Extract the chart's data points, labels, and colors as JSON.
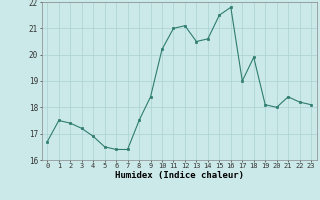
{
  "x": [
    0,
    1,
    2,
    3,
    4,
    5,
    6,
    7,
    8,
    9,
    10,
    11,
    12,
    13,
    14,
    15,
    16,
    17,
    18,
    19,
    20,
    21,
    22,
    23
  ],
  "y": [
    16.7,
    17.5,
    17.4,
    17.2,
    16.9,
    16.5,
    16.4,
    16.4,
    17.5,
    18.4,
    20.2,
    21.0,
    21.1,
    20.5,
    20.6,
    21.5,
    21.8,
    19.0,
    19.9,
    18.1,
    18.0,
    18.4,
    18.2,
    18.1
  ],
  "line_color": "#2e7d6e",
  "marker": "s",
  "marker_size": 2.0,
  "bg_color": "#cce9e9",
  "grid_color": "#b0d4d4",
  "xlabel": "Humidex (Indice chaleur)",
  "ylim": [
    16,
    22
  ],
  "xlim": [
    -0.5,
    23.5
  ],
  "yticks": [
    16,
    17,
    18,
    19,
    20,
    21,
    22
  ],
  "xticks": [
    0,
    1,
    2,
    3,
    4,
    5,
    6,
    7,
    8,
    9,
    10,
    11,
    12,
    13,
    14,
    15,
    16,
    17,
    18,
    19,
    20,
    21,
    22,
    23
  ]
}
